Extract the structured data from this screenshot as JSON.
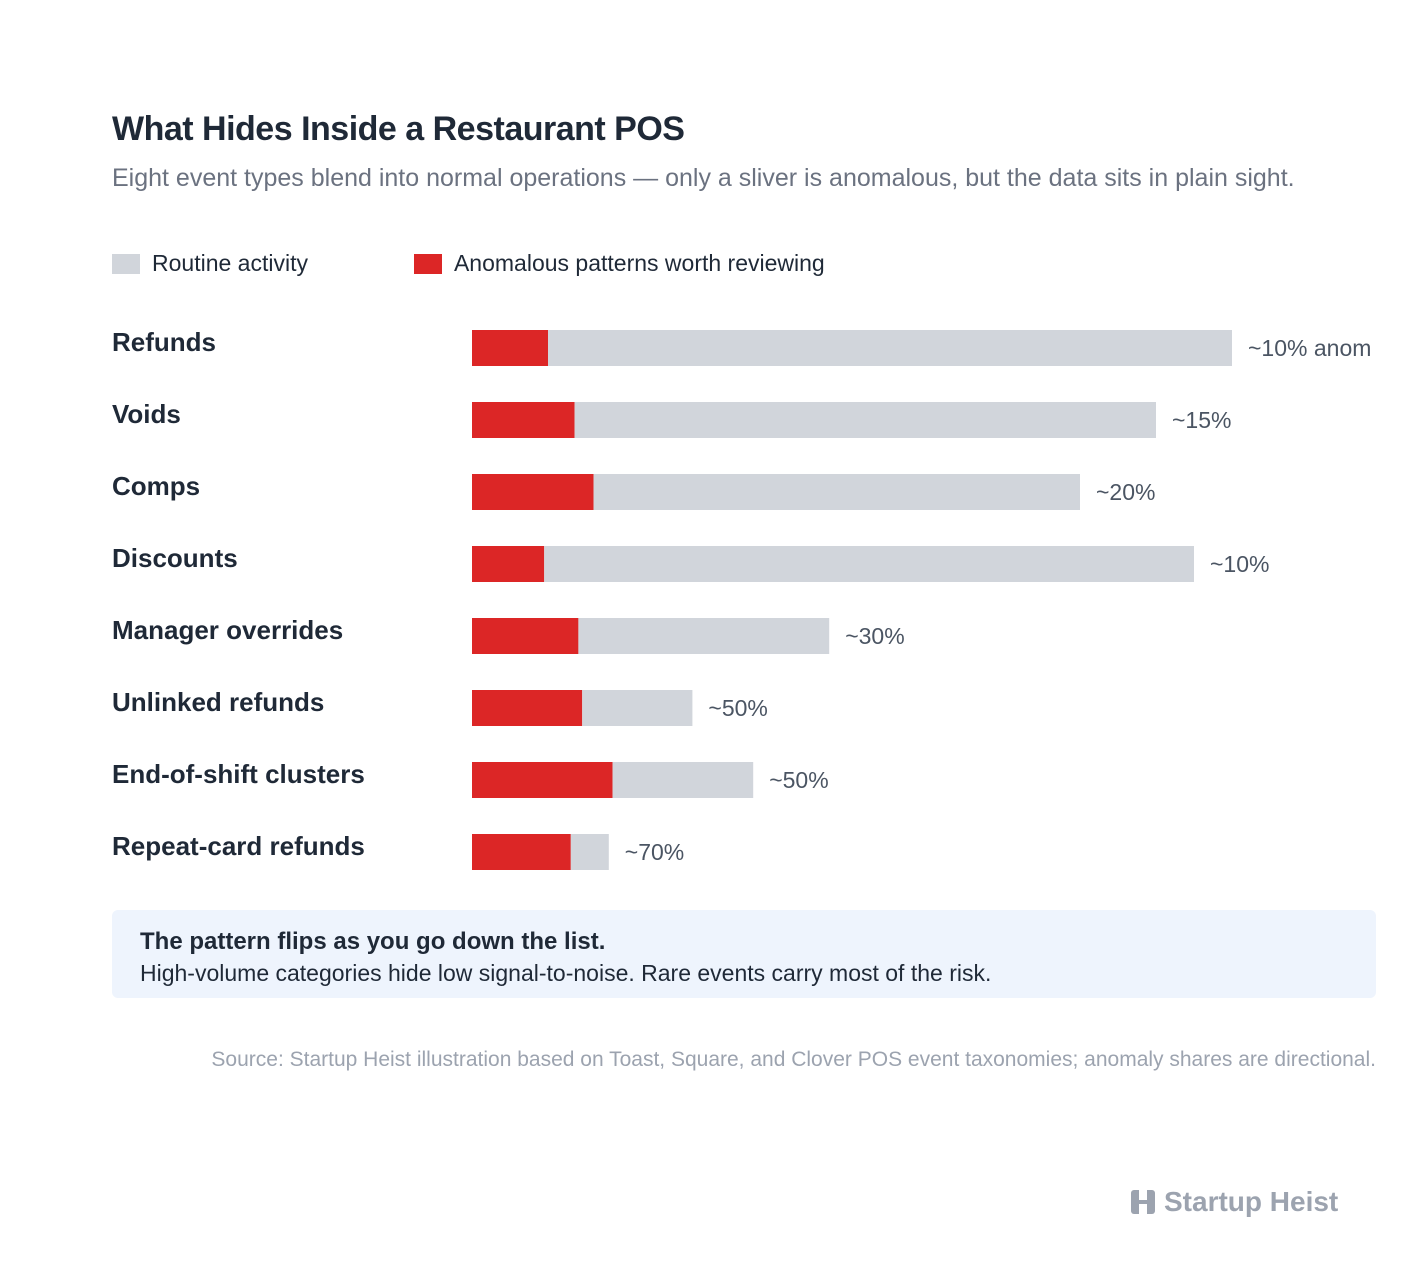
{
  "chart_data": {
    "type": "stacked-bar-horizontal",
    "title": "What Hides Inside a Restaurant POS",
    "subtitle": "Eight event types blend into normal operations — only a sliver is anomalous, but the data sits in plain sight.",
    "categories": [
      "Refunds",
      "Voids",
      "Comps",
      "Discounts",
      "Manager overrides",
      "Unlinked refunds",
      "End-of-shift clusters",
      "Repeat-card refunds"
    ],
    "series": [
      {
        "name": "Routine activity",
        "color": "#d1d5db",
        "values": [
          90,
          76.5,
          64,
          85.5,
          33,
          14.5,
          18.5,
          5
        ]
      },
      {
        "name": "Anomalous patterns worth reviewing",
        "color": "#dc2626",
        "values": [
          10,
          13.5,
          16,
          9.5,
          14,
          14.5,
          18.5,
          13
        ]
      }
    ],
    "annotations": [
      "~10% anom",
      "~15%",
      "~20%",
      "~10%",
      "~30%",
      "~50%",
      "~50%",
      "~70%"
    ],
    "xlim": [
      0,
      100
    ],
    "note": {
      "title": "The pattern flips as you go down the list.",
      "text": "High-volume categories hide low signal-to-noise. Rare events carry most of the risk."
    },
    "source": "Source: Startup Heist illustration based on Toast, Square, and Clover POS event taxonomies; anomaly shares are directional.",
    "brand": "Startup Heist"
  }
}
